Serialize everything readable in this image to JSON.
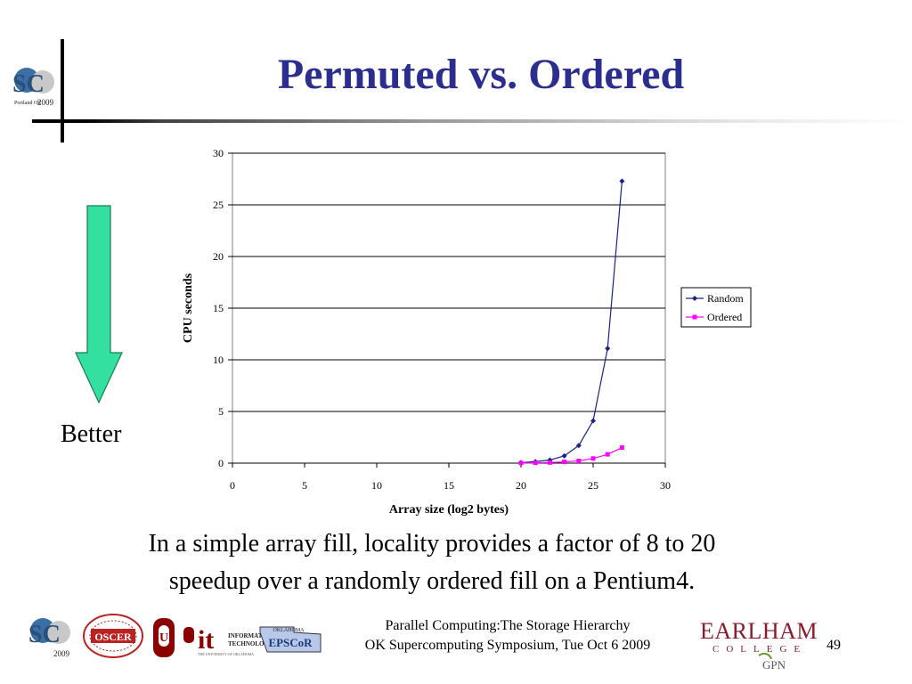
{
  "slide": {
    "title": "Permuted vs. Ordered",
    "better_label": "Better",
    "caption_line1": "In a simple array fill, locality provides a factor of 8 to 20",
    "caption_line2": "speedup over a randomly ordered fill on a Pentium4.",
    "footer_line1": "Parallel Computing:The Storage Hierarchy",
    "footer_line2": "OK Supercomputing Symposium, Tue Oct 6 2009",
    "page_number": "49"
  },
  "logos": {
    "sc_top": {
      "letters": "SC",
      "small1": "Portland OR",
      "small2": "2009"
    },
    "sc_bottom": {
      "letters": "SC",
      "small": "2009"
    },
    "oscer": {
      "text": "OSCER"
    },
    "ou": {
      "text": "U"
    },
    "it": {
      "main": "it",
      "line1": "INFORMATION",
      "line2": "TECHNOLOGY",
      "line3": "THE UNIVERSITY OF OKLAHOMA"
    },
    "epscor": {
      "top": "OKLAHOMA",
      "main": "EPSCoR"
    },
    "earlham": {
      "name": "EARLHAM",
      "sub": "COLLEGE",
      "gpn": "GPN"
    }
  },
  "colors": {
    "title": "#2b2e8f",
    "arrow": "#33e0a0",
    "random": "#1a237e",
    "ordered": "#ff00ff",
    "earlham": "#8b1a2b"
  },
  "chart_data": {
    "type": "line",
    "xlabel": "Array size (log2 bytes)",
    "ylabel": "CPU seconds",
    "xlim": [
      0,
      30
    ],
    "ylim": [
      0,
      30
    ],
    "xticks": [
      0,
      5,
      10,
      15,
      20,
      25,
      30
    ],
    "yticks": [
      0,
      5,
      10,
      15,
      20,
      25,
      30
    ],
    "grid": "horizontal",
    "legend_position": "right",
    "series": [
      {
        "name": "Random",
        "marker": "diamond",
        "color": "#1a237e",
        "x": [
          20,
          21,
          22,
          23,
          24,
          25,
          26,
          27
        ],
        "y": [
          0.05,
          0.15,
          0.3,
          0.7,
          1.7,
          4.1,
          11.1,
          27.3
        ]
      },
      {
        "name": "Ordered",
        "marker": "square",
        "color": "#ff00ff",
        "x": [
          20,
          21,
          22,
          23,
          24,
          25,
          26,
          27
        ],
        "y": [
          0.01,
          0.03,
          0.06,
          0.12,
          0.22,
          0.45,
          0.85,
          1.5
        ]
      }
    ]
  }
}
